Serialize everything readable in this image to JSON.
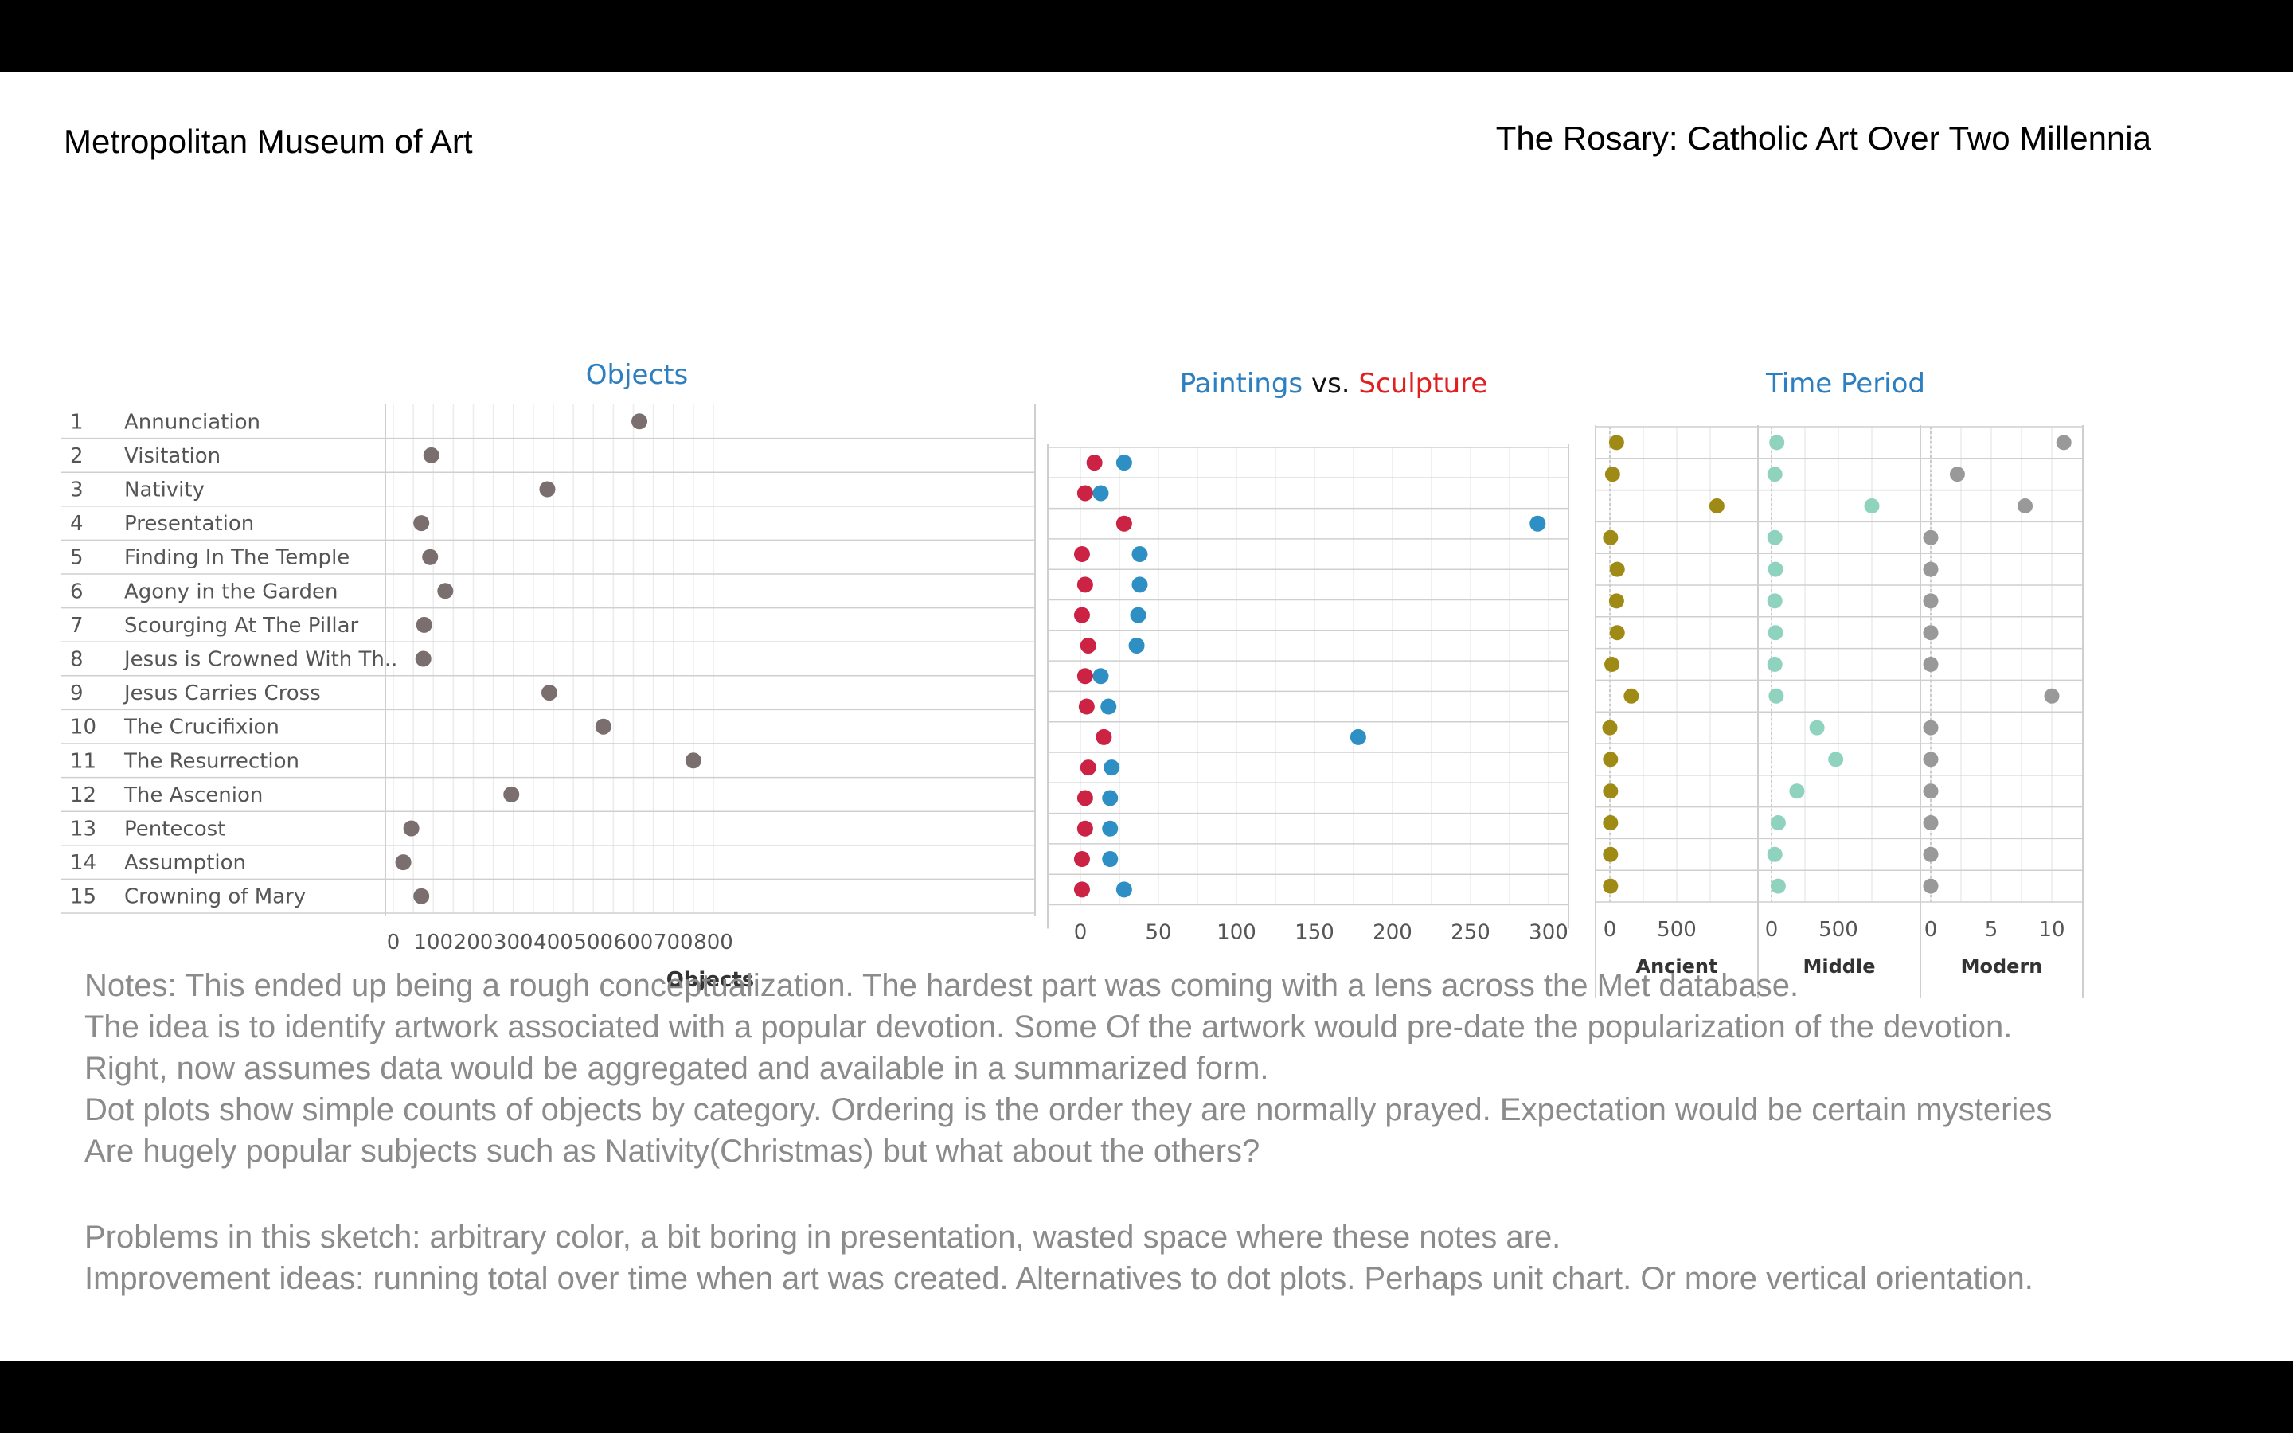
{
  "header": {
    "left_title": "Metropolitan Museum of Art",
    "right_title": "The Rosary: Catholic Art Over Two Millennia"
  },
  "colors": {
    "objects_dot": "#7a6e6e",
    "paintings": "#2e8fc4",
    "sculpture": "#cc2244",
    "ancient": "#a08a16",
    "middle": "#8fd3bf",
    "modern": "#999999",
    "title_blue": "#2e7fbf",
    "title_red": "#e02020"
  },
  "chart_data": [
    {
      "type": "scatter",
      "title": "Objects",
      "xlabel": "Objects",
      "xlim": [
        0,
        800
      ],
      "xticks": [
        "0",
        "100",
        "200",
        "300",
        "400",
        "500",
        "600",
        "700",
        "800"
      ],
      "rows": [
        {
          "rank": "1",
          "label": "Annunciation"
        },
        {
          "rank": "2",
          "label": "Visitation"
        },
        {
          "rank": "3",
          "label": "Nativity"
        },
        {
          "rank": "4",
          "label": "Presentation"
        },
        {
          "rank": "5",
          "label": "Finding In The Temple"
        },
        {
          "rank": "6",
          "label": "Agony in the Garden"
        },
        {
          "rank": "7",
          "label": "Scourging At The Pillar"
        },
        {
          "rank": "8",
          "label": "Jesus is Crowned With Th.."
        },
        {
          "rank": "9",
          "label": "Jesus Carries Cross"
        },
        {
          "rank": "10",
          "label": "The Crucifixion"
        },
        {
          "rank": "11",
          "label": "The Resurrection"
        },
        {
          "rank": "12",
          "label": "The Ascenion"
        },
        {
          "rank": "13",
          "label": "Pentecost"
        },
        {
          "rank": "14",
          "label": "Assumption"
        },
        {
          "rank": "15",
          "label": "Crowning of Mary"
        }
      ],
      "values": [
        615,
        95,
        385,
        70,
        92,
        130,
        77,
        75,
        390,
        525,
        750,
        295,
        45,
        25,
        70
      ]
    },
    {
      "type": "scatter",
      "title_parts": [
        "Paintings",
        " vs. ",
        "Sculpture"
      ],
      "xlim": [
        0,
        300
      ],
      "xticks": [
        "0",
        "50",
        "100",
        "150",
        "200",
        "250",
        "300"
      ],
      "series": [
        {
          "name": "Paintings",
          "values": [
            28,
            13,
            293,
            38,
            38,
            37,
            36,
            13,
            18,
            178,
            20,
            19,
            19,
            19,
            28
          ]
        },
        {
          "name": "Sculpture",
          "values": [
            9,
            3,
            28,
            1,
            3,
            1,
            5,
            3,
            4,
            15,
            5,
            3,
            3,
            1,
            1
          ]
        }
      ]
    },
    {
      "type": "scatter",
      "title": "Time Period",
      "panels": [
        {
          "name": "Ancient",
          "xlim": [
            0,
            800
          ],
          "xticks": [
            "0",
            "500"
          ],
          "values": [
            50,
            20,
            800,
            5,
            55,
            50,
            55,
            15,
            160,
            0,
            5,
            5,
            5,
            5,
            5
          ]
        },
        {
          "name": "Middle",
          "xlim": [
            0,
            800
          ],
          "xticks": [
            "0",
            "500"
          ],
          "values": [
            40,
            25,
            750,
            25,
            30,
            25,
            30,
            25,
            35,
            340,
            480,
            190,
            50,
            25,
            50
          ]
        },
        {
          "name": "Modern",
          "xlim": [
            0,
            12
          ],
          "xticks": [
            "0",
            "5",
            "10"
          ],
          "values": [
            11,
            2.2,
            7.8,
            0,
            0,
            0,
            0,
            0,
            10,
            0,
            0,
            0,
            0,
            0,
            0
          ]
        }
      ]
    }
  ],
  "notes": {
    "lines": [
      "Notes:  This ended up being a rough conceptualization.  The hardest part was coming with a lens across the Met database.",
      "The idea is to identify artwork associated with a popular devotion. Some Of the artwork would pre-date the popularization of the devotion.",
      "Right, now assumes data would be aggregated and available in a summarized form.",
      "Dot plots show simple counts of objects by category.   Ordering is the order they are normally prayed.  Expectation would be certain mysteries",
      "Are hugely popular subjects such as Nativity(Christmas) but what about the others?"
    ],
    "lines2": [
      "Problems in this sketch:  arbitrary color, a bit boring in presentation, wasted space where these notes are.",
      "Improvement ideas:  running total over time when art was created.  Alternatives to dot plots.  Perhaps unit chart. Or more vertical orientation."
    ]
  }
}
